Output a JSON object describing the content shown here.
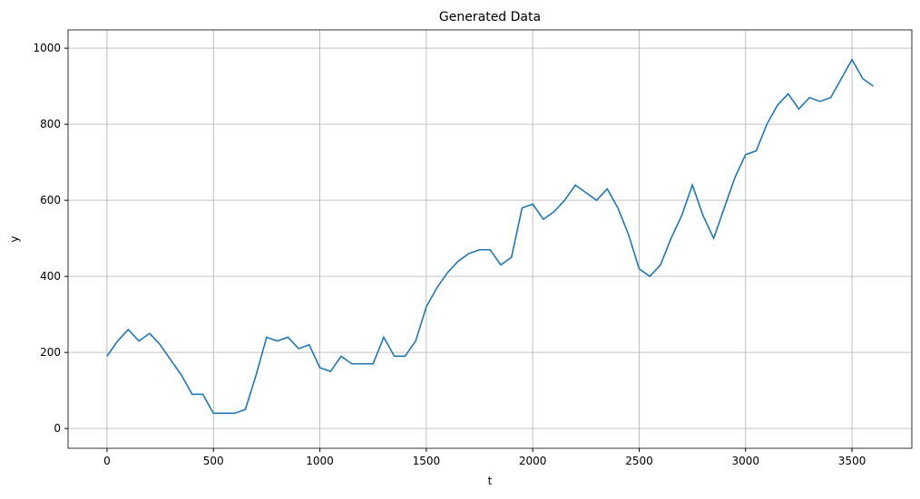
{
  "chart_data": {
    "type": "line",
    "title": "Generated Data",
    "x_label": "t",
    "y_label": "y",
    "x": [
      0,
      50,
      100,
      150,
      200,
      250,
      300,
      350,
      400,
      450,
      500,
      550,
      600,
      650,
      700,
      750,
      800,
      850,
      900,
      950,
      1000,
      1050,
      1100,
      1150,
      1200,
      1250,
      1300,
      1350,
      1400,
      1450,
      1500,
      1550,
      1600,
      1650,
      1700,
      1750,
      1800,
      1850,
      1900,
      1950,
      2000,
      2050,
      2100,
      2150,
      2200,
      2250,
      2300,
      2350,
      2400,
      2450,
      2500,
      2550,
      2600,
      2650,
      2700,
      2750,
      2800,
      2850,
      2900,
      2950,
      3000,
      3050,
      3100,
      3150,
      3200,
      3250,
      3300,
      3350,
      3400,
      3450,
      3500,
      3550,
      3600
    ],
    "series": [
      {
        "color": "#1f77b4",
        "values": [
          190,
          230,
          260,
          230,
          250,
          220,
          180,
          140,
          90,
          90,
          40,
          40,
          40,
          50,
          140,
          240,
          230,
          240,
          210,
          220,
          160,
          150,
          190,
          170,
          170,
          170,
          240,
          190,
          190,
          230,
          320,
          370,
          410,
          440,
          460,
          470,
          470,
          430,
          450,
          580,
          590,
          550,
          570,
          600,
          640,
          620,
          600,
          630,
          580,
          510,
          420,
          400,
          430,
          500,
          560,
          640,
          560,
          500,
          580,
          660,
          720,
          730,
          800,
          850,
          880,
          840,
          870,
          860,
          870,
          920,
          970,
          920,
          900
        ]
      }
    ],
    "xlim": [
      -183,
      3781
    ],
    "ylim": [
      -52,
      1048
    ],
    "xticks": [
      0,
      500,
      1000,
      1500,
      2000,
      2500,
      3000,
      3500
    ],
    "yticks": [
      0,
      200,
      400,
      600,
      800,
      1000
    ],
    "grid": true
  }
}
